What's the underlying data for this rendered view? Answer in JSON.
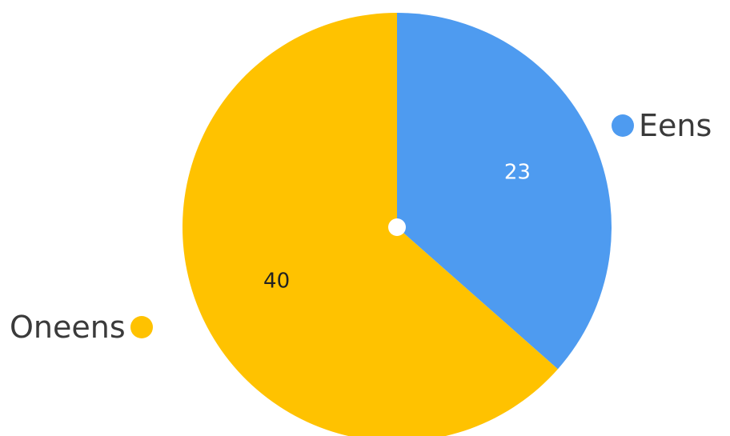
{
  "chart_data": {
    "type": "pie",
    "title": "",
    "slices": [
      {
        "label": "Eens",
        "value": 23,
        "color": "#4e9bf0",
        "label_color": "#ffffff"
      },
      {
        "label": "Oneens",
        "value": 40,
        "color": "#ffc200",
        "label_color": "#222222"
      }
    ],
    "start_angle_deg": 0,
    "direction": "clockwise",
    "center_dot": true
  },
  "legend": {
    "eens": {
      "label": "Eens",
      "color": "#4e9bf0"
    },
    "oneens": {
      "label": "Oneens",
      "color": "#ffc200"
    }
  }
}
